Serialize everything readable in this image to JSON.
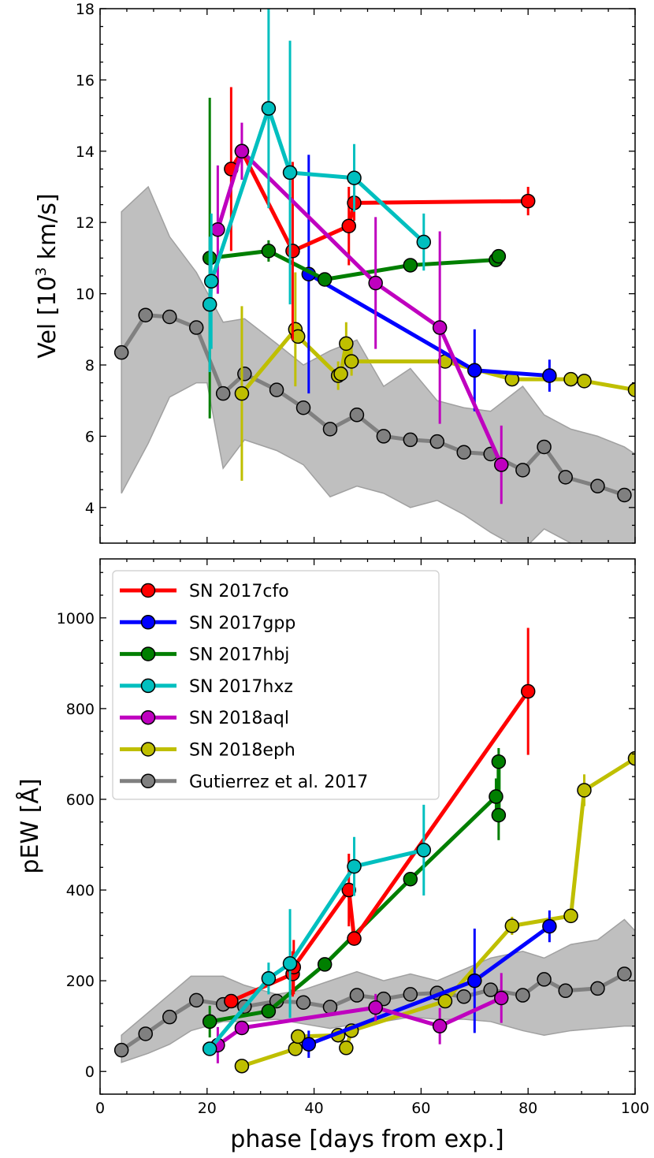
{
  "chart_data": [
    {
      "id": "velocity",
      "type": "line",
      "ylabel_prefix": "Vel [10",
      "ylabel_sup": "3",
      "ylabel_suffix": " km/s]",
      "xlim": [
        0,
        100
      ],
      "ylim": [
        3,
        18
      ],
      "yticks": [
        4,
        6,
        8,
        10,
        12,
        14,
        16,
        18
      ],
      "band": {
        "color": "#bfbfbf",
        "upper": [
          [
            4,
            12.3
          ],
          [
            9,
            13.0
          ],
          [
            13,
            11.6
          ],
          [
            18,
            10.6
          ],
          [
            23,
            9.2
          ],
          [
            27,
            9.3
          ],
          [
            33,
            8.6
          ],
          [
            38,
            8.0
          ],
          [
            43,
            8.4
          ],
          [
            48,
            8.7
          ],
          [
            53,
            7.4
          ],
          [
            58,
            7.9
          ],
          [
            63,
            7.0
          ],
          [
            68,
            6.8
          ],
          [
            73,
            6.7
          ],
          [
            79,
            7.4
          ],
          [
            83,
            6.6
          ],
          [
            88,
            6.2
          ],
          [
            93,
            6.0
          ],
          [
            98,
            5.7
          ],
          [
            100,
            5.5
          ]
        ],
        "lower": [
          [
            4,
            4.4
          ],
          [
            9,
            5.8
          ],
          [
            13,
            7.1
          ],
          [
            18,
            7.5
          ],
          [
            20,
            7.5
          ],
          [
            23,
            5.1
          ],
          [
            27,
            5.9
          ],
          [
            33,
            5.6
          ],
          [
            38,
            5.2
          ],
          [
            43,
            4.3
          ],
          [
            48,
            4.6
          ],
          [
            53,
            4.4
          ],
          [
            58,
            4.0
          ],
          [
            63,
            4.2
          ],
          [
            68,
            3.8
          ],
          [
            73,
            3.3
          ],
          [
            79,
            2.8
          ],
          [
            83,
            3.4
          ],
          [
            88,
            3.0
          ],
          [
            93,
            2.8
          ],
          [
            100,
            2.6
          ]
        ]
      },
      "series": [
        {
          "name": "Gutierrez et al. 2017",
          "color": "#808080",
          "x": [
            4,
            8.5,
            13,
            18,
            23,
            27,
            33,
            38,
            43,
            48,
            53,
            58,
            63,
            68,
            73,
            79,
            83,
            87,
            93,
            98
          ],
          "y": [
            8.35,
            9.4,
            9.35,
            9.05,
            7.2,
            7.75,
            7.3,
            6.8,
            6.2,
            6.6,
            6.0,
            5.9,
            5.85,
            5.55,
            5.5,
            5.05,
            5.7,
            4.85,
            4.6,
            4.35
          ],
          "err": null
        },
        {
          "name": "SN 2017cfo",
          "color": "#ff0000",
          "x": [
            24.5,
            26.5,
            36,
            46.5,
            47.5,
            80
          ],
          "y": [
            13.5,
            14.0,
            11.2,
            11.9,
            12.55,
            12.6
          ],
          "err": [
            2.3,
            0,
            2.5,
            1.1,
            0.5,
            0.4
          ]
        },
        {
          "name": "SN 2017gpp",
          "color": "#0000ff",
          "x": [
            39,
            70,
            84
          ],
          "y": [
            10.55,
            7.85,
            7.7
          ],
          "err": [
            3.35,
            1.15,
            0.45
          ]
        },
        {
          "name": "SN 2017hbj",
          "color": "#007f00",
          "x": [
            20.5,
            31.5,
            42,
            58,
            74,
            74.5
          ],
          "y": [
            11.0,
            11.2,
            10.4,
            10.8,
            10.95,
            11.05
          ],
          "err": [
            4.5,
            0.3,
            0,
            0,
            0,
            0
          ]
        },
        {
          "name": "SN 2017hxz",
          "color": "#00bfbf",
          "x": [
            20.5,
            20.8,
            31.5,
            35.5,
            47.5,
            60.5
          ],
          "y": [
            9.7,
            10.35,
            15.2,
            13.4,
            13.25,
            11.45
          ],
          "err": [
            1.9,
            1.9,
            2.8,
            3.7,
            0.95,
            0.8
          ]
        },
        {
          "name": "SN 2018aql",
          "color": "#bf00bf",
          "x": [
            22,
            26.5,
            51.5,
            63.5,
            75
          ],
          "y": [
            11.8,
            14.0,
            10.3,
            9.05,
            5.2
          ],
          "err": [
            1.8,
            0.8,
            1.85,
            2.7,
            1.1
          ]
        },
        {
          "name": "SN 2018eph",
          "color": "#bfbf00",
          "x": [
            26.5,
            36.5,
            37,
            44.5,
            45,
            46,
            47,
            64.5,
            77,
            88,
            90.5,
            100
          ],
          "y": [
            7.2,
            9.0,
            8.8,
            7.7,
            7.75,
            8.6,
            8.1,
            8.1,
            7.6,
            7.6,
            7.55,
            7.3
          ],
          "err": [
            2.45,
            1.6,
            0,
            0.4,
            0,
            0.6,
            0.4,
            0,
            0,
            0,
            0,
            0
          ]
        }
      ]
    },
    {
      "id": "pew",
      "type": "line",
      "ylabel": "pEW [Å]",
      "xlabel": "phase [days from exp.]",
      "xlim": [
        0,
        100
      ],
      "ylim": [
        -50,
        1130
      ],
      "yticks": [
        0,
        200,
        400,
        600,
        800,
        1000
      ],
      "xticks": [
        0,
        20,
        40,
        60,
        80,
        100
      ],
      "band": {
        "color": "#bfbfbf",
        "upper": [
          [
            4,
            80
          ],
          [
            9,
            130
          ],
          [
            13,
            170
          ],
          [
            17,
            210
          ],
          [
            23,
            210
          ],
          [
            27,
            190
          ],
          [
            33,
            170
          ],
          [
            38,
            180
          ],
          [
            43,
            200
          ],
          [
            48,
            220
          ],
          [
            53,
            200
          ],
          [
            58,
            215
          ],
          [
            63,
            200
          ],
          [
            68,
            225
          ],
          [
            73,
            250
          ],
          [
            79,
            265
          ],
          [
            83,
            250
          ],
          [
            88,
            280
          ],
          [
            93,
            290
          ],
          [
            98,
            335
          ],
          [
            100,
            310
          ]
        ],
        "lower": [
          [
            4,
            20
          ],
          [
            9,
            40
          ],
          [
            13,
            60
          ],
          [
            17,
            90
          ],
          [
            23,
            110
          ],
          [
            27,
            110
          ],
          [
            33,
            115
          ],
          [
            38,
            105
          ],
          [
            43,
            95
          ],
          [
            48,
            105
          ],
          [
            53,
            110
          ],
          [
            58,
            120
          ],
          [
            63,
            115
          ],
          [
            68,
            115
          ],
          [
            73,
            110
          ],
          [
            79,
            90
          ],
          [
            83,
            80
          ],
          [
            88,
            90
          ],
          [
            93,
            95
          ],
          [
            98,
            100
          ],
          [
            100,
            100
          ]
        ]
      },
      "series": [
        {
          "name": "Gutierrez et al. 2017",
          "color": "#808080",
          "x": [
            4,
            8.5,
            13,
            18,
            23,
            27,
            33,
            38,
            43,
            48,
            53,
            58,
            63,
            68,
            73,
            79,
            83,
            87,
            93,
            98
          ],
          "y": [
            47,
            83,
            120,
            157,
            148,
            143,
            155,
            152,
            142,
            168,
            160,
            170,
            173,
            165,
            180,
            168,
            203,
            178,
            183,
            215
          ],
          "err": null
        },
        {
          "name": "SN 2017cfo",
          "color": "#ff0000",
          "x": [
            24.5,
            36,
            36.2,
            46.5,
            47.5,
            80
          ],
          "y": [
            155,
            215,
            230,
            400,
            293,
            838
          ],
          "err": [
            0,
            50,
            60,
            80,
            0,
            140
          ]
        },
        {
          "name": "SN 2017gpp",
          "color": "#0000ff",
          "x": [
            39,
            70,
            84
          ],
          "y": [
            60,
            200,
            320
          ],
          "err": [
            30,
            115,
            35
          ]
        },
        {
          "name": "SN 2017hbj",
          "color": "#007f00",
          "x": [
            20.5,
            31.5,
            42,
            58,
            74,
            74.5,
            74.5
          ],
          "y": [
            110,
            133,
            236,
            424,
            606,
            565,
            683
          ],
          "err": [
            35,
            0,
            0,
            0,
            40,
            55,
            30
          ]
        },
        {
          "name": "SN 2017hxz",
          "color": "#00bfbf",
          "x": [
            20.5,
            31.5,
            35.5,
            47.5,
            60.5
          ],
          "y": [
            50,
            205,
            238,
            452,
            488
          ],
          "err": [
            0,
            35,
            120,
            65,
            100
          ]
        },
        {
          "name": "SN 2018aql",
          "color": "#bf00bf",
          "x": [
            22,
            26.5,
            51.5,
            63.5,
            75
          ],
          "y": [
            58,
            96,
            141,
            100,
            162
          ],
          "err": [
            40,
            0,
            30,
            40,
            55
          ]
        },
        {
          "name": "SN 2018eph",
          "color": "#bfbf00",
          "x": [
            26.5,
            36.5,
            37,
            44.5,
            46,
            47,
            64.5,
            77,
            88,
            90.5,
            100
          ],
          "y": [
            12,
            50,
            77,
            80,
            52,
            90,
            155,
            321,
            343,
            620,
            690
          ],
          "err": [
            0,
            0,
            0,
            0,
            0,
            0,
            0,
            20,
            0,
            35,
            0
          ]
        }
      ]
    }
  ],
  "legend": {
    "entries": [
      "SN 2017cfo",
      "SN 2017gpp",
      "SN 2017hbj",
      "SN 2017hxz",
      "SN 2018aql",
      "SN 2018eph",
      "Gutierrez et al. 2017"
    ]
  }
}
